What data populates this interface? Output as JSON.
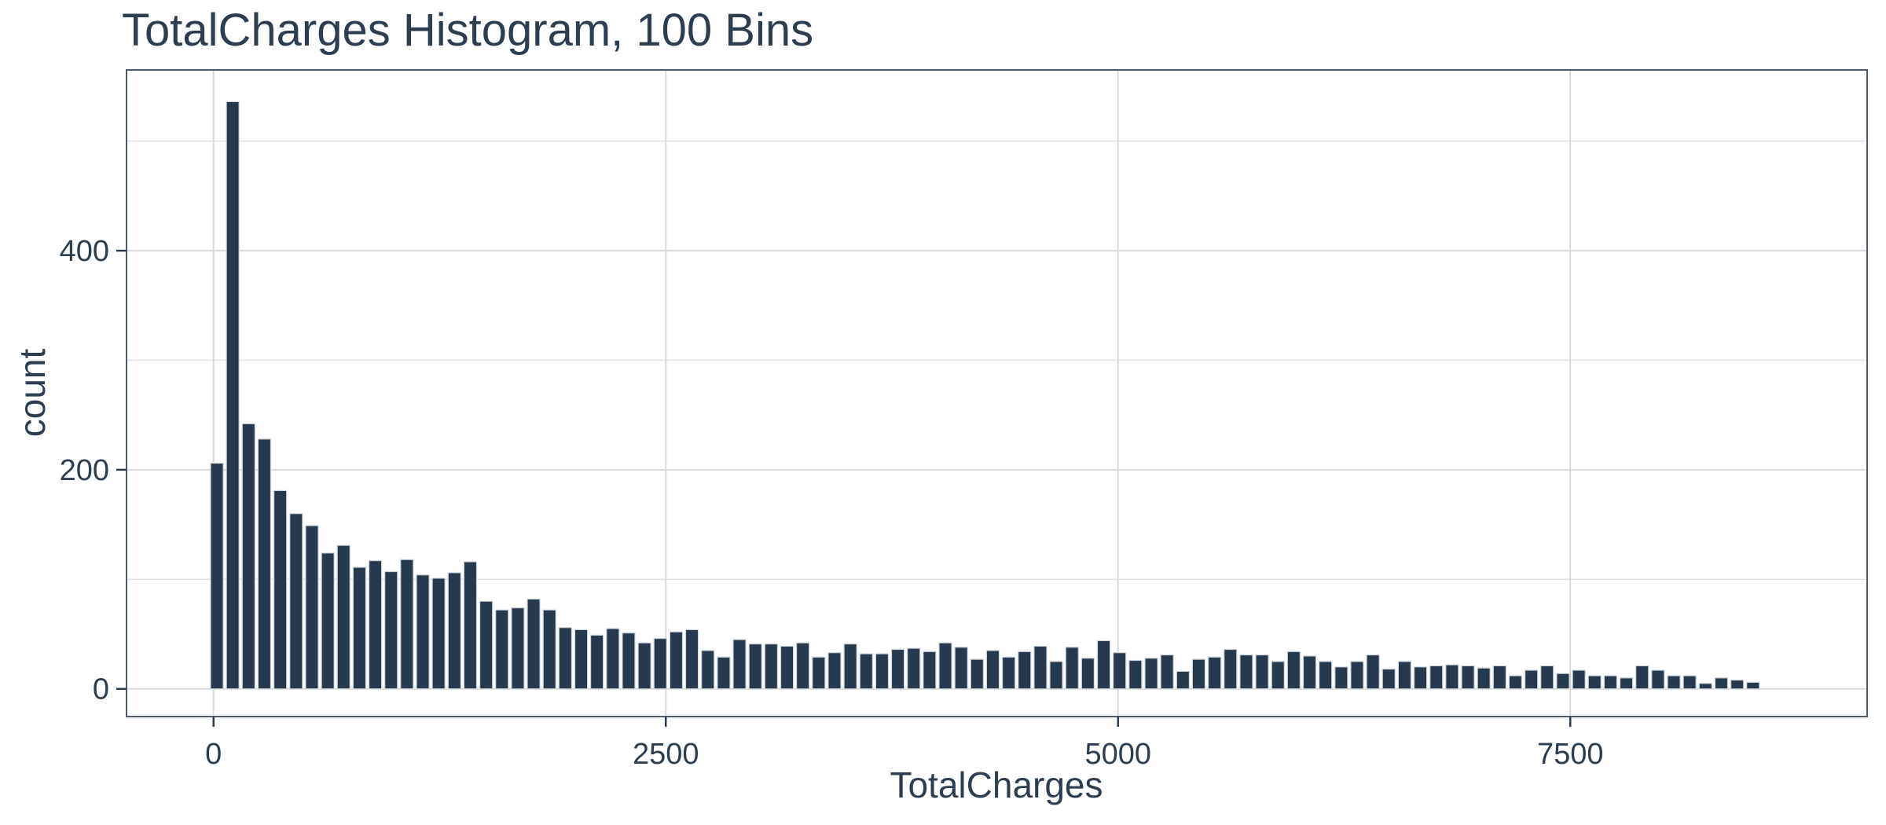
{
  "chart_data": {
    "type": "bar",
    "subtype": "histogram",
    "title": "TotalCharges Histogram, 100 Bins",
    "xlabel": "TotalCharges",
    "ylabel": "count",
    "bins": 100,
    "bin_center_start": 18.8,
    "bin_width": 87.54,
    "counts": [
      206,
      536,
      242,
      228,
      181,
      160,
      149,
      124,
      131,
      111,
      117,
      107,
      118,
      104,
      101,
      106,
      116,
      80,
      72,
      74,
      82,
      72,
      56,
      54,
      49,
      55,
      51,
      42,
      46,
      52,
      54,
      35,
      29,
      45,
      41,
      41,
      39,
      42,
      29,
      33,
      41,
      32,
      32,
      36,
      37,
      34,
      42,
      38,
      27,
      35,
      29,
      34,
      39,
      25,
      38,
      28,
      44,
      33,
      26,
      28,
      31,
      16,
      27,
      29,
      36,
      31,
      31,
      25,
      34,
      30,
      25,
      20,
      25,
      31,
      18,
      25,
      20,
      21,
      22,
      21,
      19,
      21,
      12,
      17,
      21,
      14,
      17,
      12,
      12,
      10,
      21,
      17,
      12,
      12,
      5,
      10,
      8,
      6,
      0,
      0
    ],
    "x_axis": {
      "ticks": [
        0,
        2500,
        5000,
        7500
      ],
      "tick_labels": [
        "0",
        "2500",
        "5000",
        "7500"
      ],
      "range": [
        -481,
        9141
      ]
    },
    "y_axis": {
      "ticks": [
        0,
        200,
        400
      ],
      "tick_labels": [
        "0",
        "200",
        "400"
      ],
      "minor_gridlines": [
        100,
        300,
        500
      ],
      "range": [
        -25.3,
        565
      ]
    },
    "grid": true,
    "legend_position": "none",
    "colors": {
      "bar_fill": "#273a4d",
      "bar_outline": "#ccd4da",
      "grid_major": "#d6d6d6",
      "grid_minor": "#e0e0e0",
      "panel_border": "#4d5b6b",
      "text": "#2c3e50",
      "background": "#ffffff"
    }
  }
}
